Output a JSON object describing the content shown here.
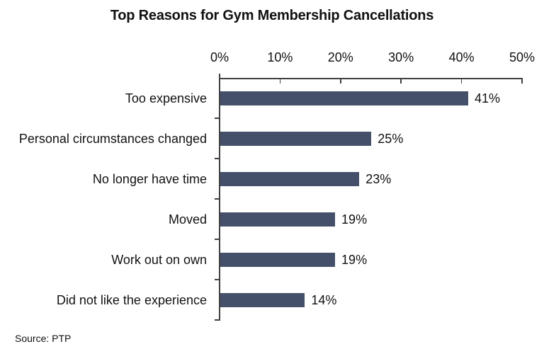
{
  "source_note": "Source: PTP",
  "chart_data": {
    "type": "bar",
    "orientation": "horizontal",
    "title": "Top Reasons for Gym Membership Cancellations",
    "categories": [
      "Too expensive",
      "Personal circumstances changed",
      "No longer have time",
      "Moved",
      "Work out on own",
      "Did not like the experience"
    ],
    "values": [
      41,
      25,
      23,
      19,
      19,
      14
    ],
    "value_labels": [
      "41%",
      "25%",
      "23%",
      "19%",
      "19%",
      "14%"
    ],
    "x_tick_labels": [
      "0%",
      "10%",
      "20%",
      "30%",
      "40%",
      "50%"
    ],
    "x_tick_values": [
      0,
      10,
      20,
      30,
      40,
      50
    ],
    "xlim": [
      0,
      50
    ],
    "axis_position": "top",
    "grid": false,
    "legend": "none",
    "bar_color": "#44506A",
    "axis_color": "#404040",
    "text_color": "#111111"
  }
}
